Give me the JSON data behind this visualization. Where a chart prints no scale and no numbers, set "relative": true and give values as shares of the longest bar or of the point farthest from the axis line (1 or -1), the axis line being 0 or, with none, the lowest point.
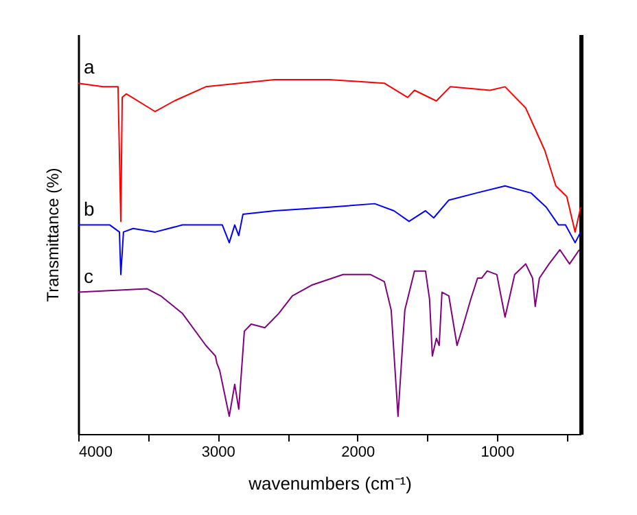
{
  "chart_data": {
    "type": "line",
    "relative": true,
    "xlabel": "wavenumbers (cm⁻¹)",
    "ylabel": "Transmittance (%)",
    "xlim": [
      4000,
      400
    ],
    "xticks": [
      4000,
      {
        "value": 3500,
        "label": null
      },
      3000,
      {
        "value": 2500,
        "label": null
      },
      2000,
      {
        "value": 1500,
        "label": null
      },
      1000,
      {
        "value": 500,
        "label": null
      }
    ],
    "grid": false,
    "legend": false,
    "marker": "none",
    "line_style": "solid",
    "series": [
      {
        "name": "a",
        "color": "#ff0000",
        "x": [
          4000,
          3823,
          3715,
          3695,
          3685,
          3656,
          3449,
          3312,
          3086,
          2594,
          2201,
          1807,
          1640,
          1591,
          1434,
          1335,
          1050,
          942,
          794,
          657,
          578,
          500,
          440,
          400
        ],
        "values": [
          0.99,
          0.98,
          0.98,
          0.6,
          0.95,
          0.96,
          0.91,
          0.94,
          0.98,
          1.0,
          1.0,
          0.99,
          0.95,
          0.97,
          0.94,
          0.98,
          0.97,
          0.98,
          0.92,
          0.8,
          0.7,
          0.67,
          0.57,
          0.64
        ]
      },
      {
        "name": "b",
        "color": "#0000ff",
        "x": [
          4000,
          3774,
          3705,
          3695,
          3676,
          3607,
          3449,
          3253,
          3056,
          2968,
          2918,
          2879,
          2850,
          2820,
          2594,
          2201,
          1876,
          1738,
          1630,
          1512,
          1453,
          1345,
          1148,
          942,
          755,
          647,
          559,
          509,
          440,
          400
        ],
        "values": [
          0.59,
          0.59,
          0.57,
          0.45,
          0.57,
          0.58,
          0.57,
          0.59,
          0.59,
          0.59,
          0.54,
          0.59,
          0.56,
          0.62,
          0.63,
          0.64,
          0.65,
          0.63,
          0.6,
          0.63,
          0.61,
          0.66,
          0.68,
          0.7,
          0.68,
          0.64,
          0.59,
          0.59,
          0.54,
          0.57
        ]
      },
      {
        "name": "c",
        "color": "#800080",
        "x": [
          4000,
          3508,
          3410,
          3253,
          3086,
          3017,
          3007,
          2987,
          2918,
          2879,
          2850,
          2810,
          2761,
          2663,
          2564,
          2466,
          2328,
          2102,
          1906,
          1807,
          1758,
          1709,
          1660,
          1591,
          1512,
          1483,
          1463,
          1434,
          1414,
          1394,
          1345,
          1286,
          1247,
          1188,
          1139,
          1109,
          1070,
          1001,
          942,
          873,
          794,
          745,
          726,
          696,
          627,
          549,
          480,
          410
        ],
        "values": [
          0.4,
          0.41,
          0.39,
          0.34,
          0.25,
          0.22,
          0.2,
          0.18,
          0.05,
          0.14,
          0.07,
          0.29,
          0.31,
          0.3,
          0.34,
          0.39,
          0.42,
          0.45,
          0.45,
          0.43,
          0.35,
          0.05,
          0.35,
          0.46,
          0.46,
          0.38,
          0.22,
          0.27,
          0.25,
          0.4,
          0.39,
          0.25,
          0.3,
          0.38,
          0.44,
          0.44,
          0.46,
          0.45,
          0.33,
          0.45,
          0.48,
          0.44,
          0.36,
          0.44,
          0.48,
          0.52,
          0.48,
          0.52
        ]
      }
    ]
  }
}
